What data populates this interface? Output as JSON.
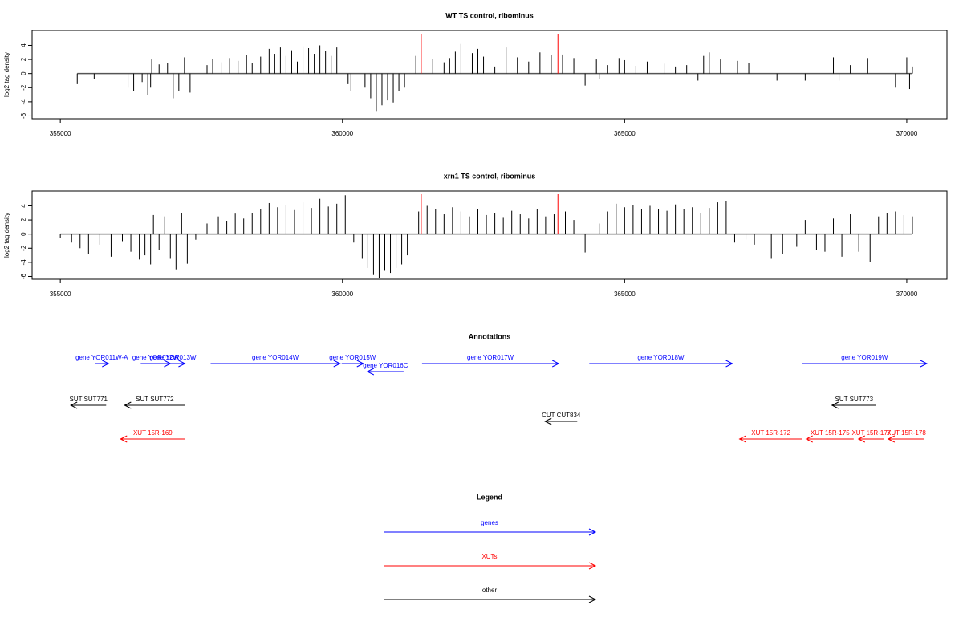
{
  "chart_data": [
    {
      "type": "bar",
      "title": "WT TS control, ribominus",
      "ylabel": "log2 tag density",
      "color": "#000000",
      "xlim": [
        354500,
        370712
      ],
      "xticks": [
        355000,
        360000,
        365000,
        370000
      ],
      "ylim": [
        -6.4,
        6.1
      ],
      "yticks": [
        -6,
        -4,
        -2,
        0,
        2,
        4
      ],
      "markers": [
        361396,
        363818
      ],
      "marker_color": "#ff0000",
      "x": [
        355300,
        355600,
        356200,
        356300,
        356450,
        356550,
        356600,
        356620,
        356750,
        356900,
        357000,
        357100,
        357200,
        357300,
        357600,
        357700,
        357850,
        358000,
        358150,
        358300,
        358400,
        358550,
        358700,
        358800,
        358900,
        359000,
        359100,
        359200,
        359300,
        359400,
        359500,
        359600,
        359700,
        359800,
        359900,
        360100,
        360150,
        360400,
        360500,
        360600,
        360700,
        360800,
        360900,
        361000,
        361100,
        361300,
        361600,
        361800,
        361900,
        362000,
        362100,
        362300,
        362400,
        362500,
        362700,
        362900,
        363100,
        363300,
        363500,
        363700,
        363900,
        364100,
        364300,
        364500,
        364550,
        364700,
        364900,
        365000,
        365200,
        365400,
        365700,
        365900,
        366100,
        366300,
        366400,
        366500,
        366700,
        367000,
        367200,
        367700,
        368200,
        368700,
        368800,
        369000,
        369300,
        369800,
        370000,
        370050,
        370100
      ],
      "values": [
        -1.5,
        -0.8,
        -2,
        -2.5,
        -1.2,
        -3,
        -2,
        2,
        1.3,
        1.5,
        -3.5,
        -2.5,
        2.3,
        -2.7,
        1.2,
        2.1,
        1.6,
        2.2,
        1.8,
        2.6,
        1.5,
        2.4,
        3.5,
        2.8,
        3.7,
        2.5,
        3.3,
        1.7,
        3.9,
        3.6,
        2.8,
        4,
        3.2,
        2.5,
        3.7,
        -1.5,
        -2.5,
        -2,
        -3.5,
        -5.3,
        -4.5,
        -3.8,
        -4.1,
        -2.5,
        -2,
        2.5,
        2.1,
        1.6,
        2.2,
        3.1,
        4.2,
        2.9,
        3.5,
        2.4,
        1,
        3.7,
        2.3,
        1.7,
        3,
        2.6,
        2.7,
        2.2,
        -1.7,
        2,
        -0.8,
        1.2,
        2.2,
        1.9,
        1.1,
        1.7,
        1.4,
        1,
        1.2,
        -1,
        2.5,
        3,
        2,
        1.8,
        1.5,
        -1,
        -1,
        2.3,
        -1,
        1.2,
        2.2,
        -2,
        2.3,
        -2.2,
        1
      ]
    },
    {
      "type": "bar",
      "title": "xrn1 TS control, ribominus",
      "ylabel": "log2 tag density",
      "color": "#000000",
      "xlim": [
        354500,
        370712
      ],
      "xticks": [
        355000,
        360000,
        365000,
        370000
      ],
      "ylim": [
        -6.4,
        6.1
      ],
      "yticks": [
        -6,
        -4,
        -2,
        0,
        2,
        4
      ],
      "markers": [
        361396,
        363818
      ],
      "marker_color": "#ff0000",
      "x": [
        355000,
        355200,
        355350,
        355500,
        355700,
        355900,
        356100,
        356250,
        356400,
        356500,
        356600,
        356650,
        356750,
        356850,
        356950,
        357050,
        357150,
        357250,
        357400,
        357600,
        357800,
        357950,
        358100,
        358250,
        358400,
        358550,
        358700,
        358850,
        359000,
        359150,
        359300,
        359450,
        359600,
        359750,
        359900,
        360050,
        360200,
        360350,
        360450,
        360550,
        360650,
        360750,
        360850,
        360950,
        361050,
        361150,
        361350,
        361500,
        361650,
        361800,
        361950,
        362100,
        362250,
        362400,
        362550,
        362700,
        362850,
        363000,
        363150,
        363300,
        363450,
        363600,
        363750,
        363950,
        364100,
        364300,
        364550,
        364700,
        364850,
        365000,
        365150,
        365300,
        365450,
        365600,
        365750,
        365900,
        366050,
        366200,
        366350,
        366500,
        366650,
        366800,
        366950,
        367150,
        367300,
        367600,
        367800,
        368050,
        368200,
        368400,
        368550,
        368700,
        368850,
        369000,
        369150,
        369350,
        369500,
        369650,
        369800,
        369950,
        370100
      ],
      "values": [
        -0.5,
        -1.2,
        -2,
        -2.8,
        -1.5,
        -3.2,
        -1,
        -2.5,
        -3.6,
        -3,
        -4.3,
        2.7,
        -2.2,
        2.5,
        -3.5,
        -5,
        3,
        -4.2,
        -0.8,
        1.5,
        2.5,
        1.8,
        2.9,
        2.2,
        3,
        3.5,
        4.4,
        3.8,
        4.1,
        3.4,
        4.5,
        3.7,
        5,
        3.9,
        4.3,
        5.5,
        -1.2,
        -3.5,
        -4.8,
        -5.8,
        -6.2,
        -5.2,
        -5.5,
        -4.8,
        -4.3,
        -3,
        3.2,
        4,
        3.5,
        2.8,
        3.8,
        3.2,
        2.5,
        3.6,
        2.7,
        3,
        2.3,
        3.3,
        2.8,
        2.2,
        3.5,
        2.5,
        2.8,
        3.2,
        2,
        -2.6,
        1.5,
        3.2,
        4.3,
        3.8,
        4.1,
        3.5,
        4,
        3.6,
        3.3,
        4.2,
        3.5,
        3.8,
        3,
        3.7,
        4.5,
        4.7,
        -1.2,
        -0.8,
        -1.5,
        -3.5,
        -2.8,
        -1.8,
        2,
        -2.3,
        -2.5,
        2.2,
        -3.2,
        2.8,
        -2.5,
        -4,
        2.5,
        3,
        3.2,
        2.7,
        2.5
      ]
    },
    {
      "type": "track",
      "title": "Annotations",
      "xlim": [
        354500,
        370712
      ],
      "features": [
        {
          "label": "gene YOR011W-A",
          "start": 355613,
          "end": 355855,
          "strand": "+",
          "kind": "genes"
        },
        {
          "label": "gene YOR012W",
          "start": 356425,
          "end": 356952,
          "strand": "+",
          "kind": "genes"
        },
        {
          "label": "gene YOR013W",
          "start": 356781,
          "end": 357208,
          "strand": "+",
          "kind": "genes"
        },
        {
          "label": "gene YOR014W",
          "start": 357664,
          "end": 359957,
          "strand": "+",
          "kind": "genes"
        },
        {
          "label": "gene YOR015W",
          "start": 359986,
          "end": 360370,
          "strand": "+",
          "kind": "genes"
        },
        {
          "label": "gene YOR016C",
          "start": 360442,
          "end": 361083,
          "strand": "-",
          "kind": "genes"
        },
        {
          "label": "gene YOR017W",
          "start": 361410,
          "end": 363832,
          "strand": "+",
          "kind": "genes"
        },
        {
          "label": "gene YOR018W",
          "start": 364373,
          "end": 366909,
          "strand": "+",
          "kind": "genes"
        },
        {
          "label": "gene YOR019W",
          "start": 368148,
          "end": 370356,
          "strand": "+",
          "kind": "genes"
        },
        {
          "label": "SUT SUT771",
          "start": 355185,
          "end": 355812,
          "strand": "-",
          "kind": "other"
        },
        {
          "label": "SUT SUT772",
          "start": 356140,
          "end": 357208,
          "strand": "-",
          "kind": "other"
        },
        {
          "label": "SUT SUT773",
          "start": 368675,
          "end": 369459,
          "strand": "-",
          "kind": "other"
        },
        {
          "label": "CUT CUT834",
          "start": 363590,
          "end": 364160,
          "strand": "-",
          "kind": "other"
        },
        {
          "label": "XUT 15R-169",
          "start": 356068,
          "end": 357208,
          "strand": "-",
          "kind": "XUTs"
        },
        {
          "label": "XUT 15R-172",
          "start": 367037,
          "end": 368148,
          "strand": "-",
          "kind": "XUTs"
        },
        {
          "label": "XUT 15R-175",
          "start": 368219,
          "end": 369060,
          "strand": "-",
          "kind": "XUTs"
        },
        {
          "label": "XUT 15R-177",
          "start": 369145,
          "end": 369601,
          "strand": "-",
          "kind": "XUTs"
        },
        {
          "label": "XUT 15R-178",
          "start": 369672,
          "end": 370313,
          "strand": "-",
          "kind": "XUTs"
        }
      ],
      "legend": {
        "title": "Legend",
        "entries": [
          {
            "name": "genes",
            "color": "#0000ff"
          },
          {
            "name": "XUTs",
            "color": "#ff0000"
          },
          {
            "name": "other",
            "color": "#000000"
          }
        ]
      }
    }
  ]
}
